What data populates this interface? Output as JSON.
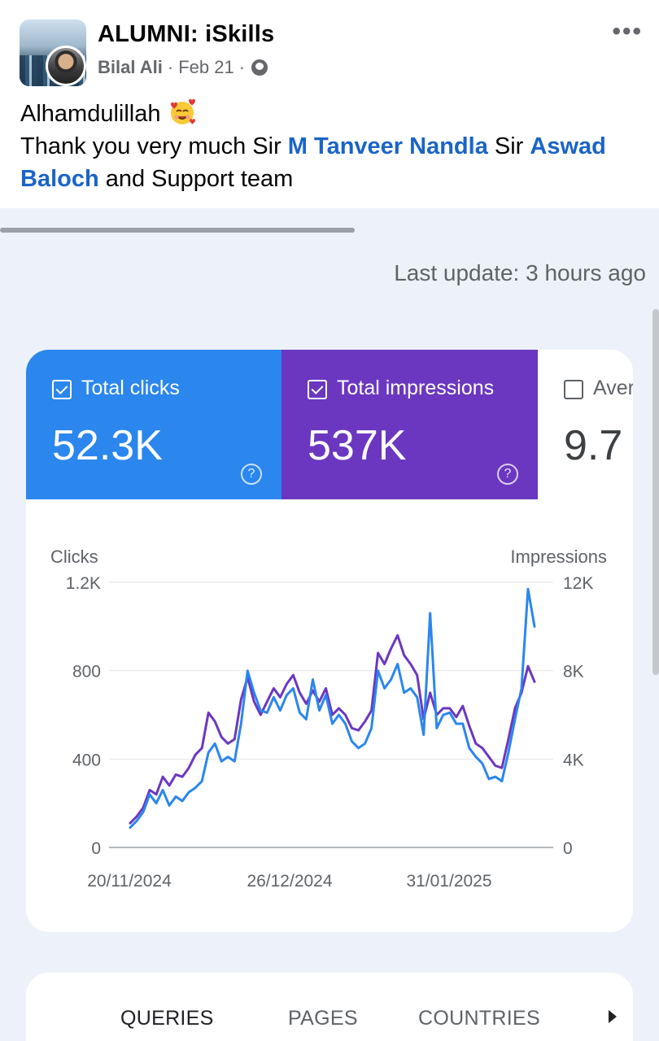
{
  "post": {
    "group_name": "ALUMNI: iSkills",
    "author": "Bilal Ali",
    "separator": "·",
    "date": "Feb 21",
    "more_label": "•••",
    "line1": "Alhamdulillah",
    "line2_a": "Thank you very much Sir ",
    "mention1": "M Tanveer Nandla",
    "line2_b": " Sir ",
    "mention2": "Aswad Baloch",
    "line2_c": " and Support team",
    "icons": [
      "group-avatar",
      "user-avatar",
      "globe-icon",
      "more-options-icon",
      "smiling-face-with-hearts-emoji"
    ]
  },
  "dashboard": {
    "last_update": "Last update: 3 hours ago",
    "metrics": [
      {
        "label": "Total clicks",
        "value": "52.3K",
        "checked": true,
        "color": "#2b86ee"
      },
      {
        "label": "Total impressions",
        "value": "537K",
        "checked": true,
        "color": "#6b37c0"
      },
      {
        "label": "Aver",
        "value": "9.7",
        "checked": false,
        "color": "#ffffff"
      }
    ],
    "help_glyph": "?",
    "tabs": [
      "QUERIES",
      "PAGES",
      "COUNTRIES"
    ]
  },
  "chart_data": {
    "type": "line",
    "y_left_label": "Clicks",
    "y_right_label": "Impressions",
    "y_left_ticks": [
      "0",
      "400",
      "800",
      "1.2K"
    ],
    "y_right_ticks": [
      "0",
      "4K",
      "8K",
      "12K"
    ],
    "ylim_left": [
      0,
      1200
    ],
    "ylim_right": [
      0,
      12000
    ],
    "x_tick_labels": [
      "20/11/2024",
      "26/12/2024",
      "31/01/2025"
    ],
    "grid": true,
    "series": [
      {
        "name": "Clicks",
        "axis": "left",
        "color": "#2b86ee",
        "values": [
          90,
          120,
          160,
          240,
          200,
          260,
          190,
          230,
          210,
          250,
          270,
          300,
          430,
          470,
          390,
          410,
          390,
          560,
          800,
          700,
          620,
          610,
          680,
          620,
          690,
          720,
          610,
          580,
          760,
          620,
          690,
          560,
          600,
          560,
          480,
          450,
          470,
          540,
          800,
          720,
          760,
          830,
          700,
          720,
          680,
          510,
          1060,
          540,
          600,
          610,
          560,
          560,
          450,
          410,
          380,
          310,
          320,
          300,
          430,
          580,
          720,
          1170,
          1000
        ]
      },
      {
        "name": "Impressions",
        "axis": "right",
        "color": "#6b37c0",
        "values": [
          1100,
          1400,
          1800,
          2600,
          2400,
          3200,
          2800,
          3300,
          3200,
          3600,
          4200,
          4500,
          6100,
          5700,
          5000,
          4700,
          4900,
          6700,
          7700,
          6600,
          6000,
          6600,
          7200,
          6800,
          7400,
          7800,
          7000,
          6500,
          7100,
          6600,
          7200,
          6000,
          6300,
          6000,
          5400,
          5300,
          5700,
          6200,
          8800,
          8300,
          9000,
          9600,
          8700,
          8300,
          7800,
          5800,
          7000,
          6000,
          6300,
          6300,
          5900,
          6400,
          5500,
          4700,
          4500,
          4100,
          3700,
          3600,
          4900,
          6300,
          7000,
          8200,
          7500
        ]
      }
    ]
  }
}
